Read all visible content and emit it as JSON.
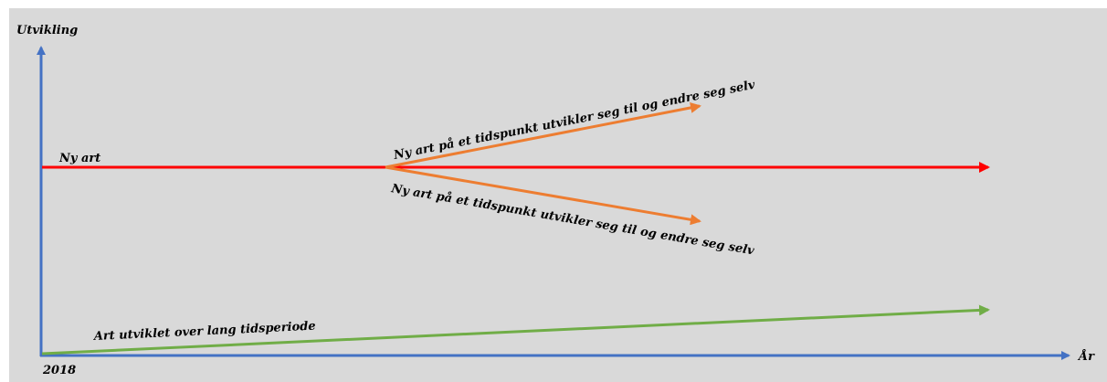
{
  "axes": {
    "y_label": "Utvikling",
    "x_label": "År",
    "origin_label": "2018"
  },
  "lines": {
    "new_species": "Ny art",
    "branch_up": "Ny art på et tidspunkt utvikler seg til og endre seg selv",
    "branch_down": "Ny art på et tidspunkt utvikler seg til og endre seg selv",
    "long_period": "Art utviklet over lang tidsperiode"
  },
  "colors": {
    "axis": "#4472c4",
    "new_species": "#ff0000",
    "branches": "#ed7d31",
    "long_period": "#70ad47",
    "background": "#d9d9d9"
  }
}
